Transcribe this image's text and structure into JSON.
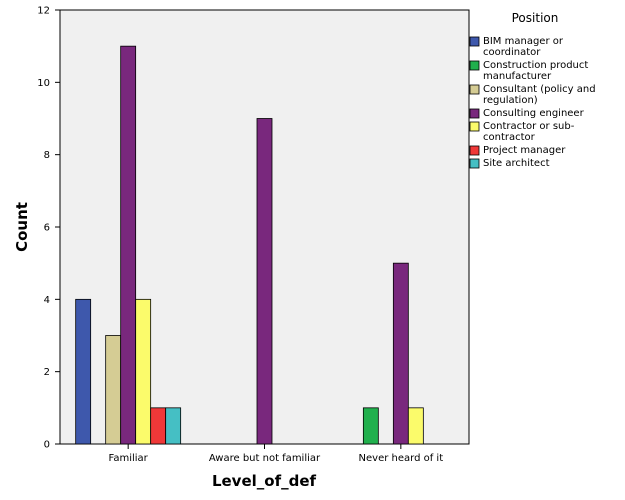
{
  "chart_data": {
    "type": "bar",
    "xlabel": "Level_of_def",
    "ylabel": "Count",
    "ylim": [
      0,
      12
    ],
    "yticks": [
      0,
      2,
      4,
      6,
      8,
      10,
      12
    ],
    "grid": false,
    "legend_position": "right",
    "legend_title": "Position",
    "categories": [
      "Familiar",
      "Aware but not familiar",
      "Never heard of it"
    ],
    "series": [
      {
        "name": "BIM manager or coordinator",
        "legend_lines": [
          "BIM manager or",
          "coordinator"
        ],
        "color": "#3e58ac",
        "values": [
          4,
          0,
          0
        ]
      },
      {
        "name": "Construction product manufacturer",
        "legend_lines": [
          "Construction product",
          "manufacturer"
        ],
        "color": "#21b04d",
        "values": [
          0,
          0,
          1
        ]
      },
      {
        "name": "Consultant (policy and regulation)",
        "legend_lines": [
          "Consultant (policy and",
          "regulation)"
        ],
        "color": "#d5cc94",
        "values": [
          3,
          0,
          0
        ]
      },
      {
        "name": "Consulting engineer",
        "legend_lines": [
          "Consulting engineer"
        ],
        "color": "#79287d",
        "values": [
          11,
          9,
          5
        ]
      },
      {
        "name": "Contractor or sub-contractor",
        "legend_lines": [
          "Contractor or sub-",
          "contractor"
        ],
        "color": "#fbfb6b",
        "values": [
          4,
          0,
          1
        ]
      },
      {
        "name": "Project manager",
        "legend_lines": [
          "Project manager"
        ],
        "color": "#ef3838",
        "values": [
          1,
          0,
          0
        ]
      },
      {
        "name": "Site architect",
        "legend_lines": [
          "Site architect"
        ],
        "color": "#45bfc4",
        "values": [
          1,
          0,
          0
        ]
      }
    ]
  }
}
